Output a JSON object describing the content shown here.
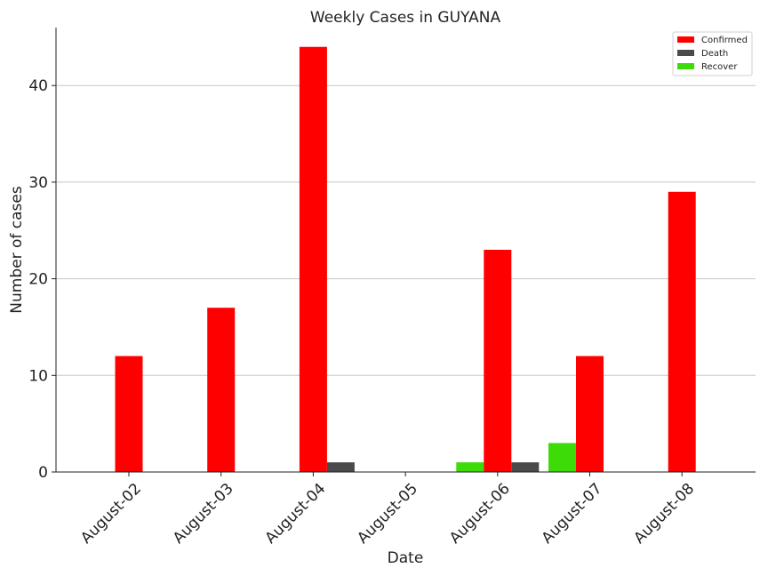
{
  "chart_data": {
    "type": "bar",
    "title": "Weekly Cases in GUYANA",
    "xlabel": "Date",
    "ylabel": "Number of cases",
    "categories": [
      "August-02",
      "August-03",
      "August-04",
      "August-05",
      "August-06",
      "August-07",
      "August-08"
    ],
    "series": [
      {
        "name": "Recover",
        "color": "#3ddc09",
        "values": [
          0,
          0,
          0,
          0,
          1,
          3,
          0
        ]
      },
      {
        "name": "Confirmed",
        "color": "#ff0000",
        "values": [
          12,
          17,
          44,
          0,
          23,
          12,
          29
        ]
      },
      {
        "name": "Death",
        "color": "#4a4a4a",
        "values": [
          0,
          0,
          1,
          0,
          1,
          0,
          0
        ]
      }
    ],
    "legend_order": [
      "Confirmed",
      "Death",
      "Recover"
    ],
    "legend_position": "top-right",
    "ylim": [
      0,
      46
    ],
    "yticks": [
      0,
      10,
      20,
      30,
      40
    ],
    "grid": "y"
  }
}
